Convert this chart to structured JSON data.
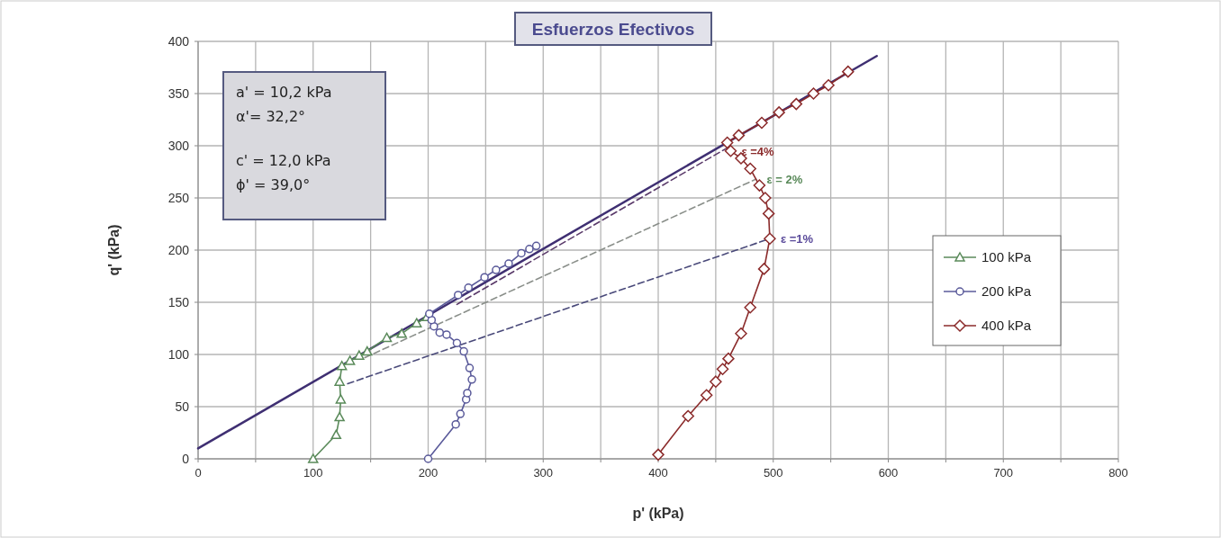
{
  "chart_data": {
    "type": "line",
    "title": "Esfuerzos Efectivos",
    "xlabel": "p' (kPa)",
    "ylabel": "q' (kPa)",
    "xlim": [
      0,
      800
    ],
    "ylim": [
      0,
      400
    ],
    "xticks": [
      0,
      {
        "value": 50,
        "label": null
      },
      100,
      {
        "value": 150,
        "label": null
      },
      200,
      {
        "value": 250,
        "label": null
      },
      300,
      {
        "value": 350,
        "label": null
      },
      400,
      {
        "value": 450,
        "label": null
      },
      500,
      {
        "value": 550,
        "label": null
      },
      600,
      {
        "value": 650,
        "label": null
      },
      700,
      {
        "value": 750,
        "label": null
      },
      800
    ],
    "yticks": [
      0,
      50,
      100,
      150,
      200,
      250,
      300,
      350,
      400
    ],
    "grid": true,
    "legend": "right",
    "annotations": [
      "a' = 10,2 kPa",
      "α'= 32,2°",
      "c' = 12,0 kPa",
      "ϕ'  = 39,0°",
      {
        "text": "ε =4%",
        "x": 463,
        "y": 295
      },
      {
        "text": "ε = 2%",
        "x": 485,
        "y": 268
      },
      {
        "text": "ε =1%",
        "x": 497,
        "y": 211
      }
    ],
    "series": [
      {
        "color": "#3f2f72",
        "line_style": "solid",
        "marker": "none",
        "x": [
          0,
          590
        ],
        "values": [
          10,
          386
        ]
      },
      {
        "color": "#4a4a7a",
        "line_style": "dashed",
        "marker": "none",
        "x": [
          130,
          497
        ],
        "values": [
          72,
          211
        ]
      },
      {
        "color": "#8a8f8a",
        "line_style": "dashed",
        "marker": "none",
        "x": [
          145,
          485
        ],
        "values": [
          97,
          268
        ]
      },
      {
        "color": "#5a3a6a",
        "line_style": "dashed",
        "marker": "none",
        "x": [
          225,
          460
        ],
        "values": [
          148,
          298
        ]
      },
      {
        "name": "100 kPa",
        "color": "#5a8a5a",
        "marker": "triangle",
        "line_style": "solid",
        "x": [
          100,
          120,
          123,
          124,
          123,
          125,
          132,
          140,
          147,
          164,
          177,
          190,
          199
        ],
        "values": [
          0,
          23,
          40,
          57,
          74,
          89,
          94,
          99,
          103,
          116,
          120,
          130,
          136
        ]
      },
      {
        "name": "200 kPa",
        "color": "#5a5a9a",
        "marker": "circle",
        "line_style": "solid",
        "x": [
          200,
          224,
          228,
          233,
          234,
          238,
          236,
          231,
          225,
          216,
          210,
          205,
          203,
          201,
          226,
          235,
          249,
          259,
          270,
          281,
          288,
          294
        ],
        "values": [
          0,
          33,
          43,
          57,
          63,
          76,
          87,
          103,
          111,
          119,
          121,
          127,
          133,
          139,
          157,
          164,
          174,
          181,
          187,
          197,
          201,
          204
        ]
      },
      {
        "name": "400 kPa",
        "color": "#8b2b2b",
        "marker": "diamond",
        "line_style": "solid",
        "x": [
          400,
          426,
          442,
          450,
          456,
          461,
          472,
          480,
          492,
          497,
          496,
          493,
          488,
          480,
          472,
          463,
          460,
          470,
          490,
          505,
          520,
          535,
          548,
          565
        ],
        "values": [
          4,
          41,
          61,
          74,
          86,
          96,
          120,
          145,
          182,
          211,
          235,
          250,
          262,
          278,
          288,
          295,
          303,
          310,
          322,
          332,
          340,
          350,
          358,
          371
        ]
      }
    ]
  }
}
